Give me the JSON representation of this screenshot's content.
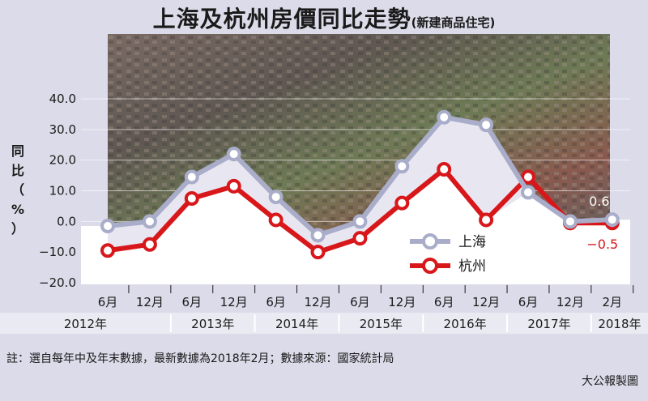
{
  "header": {
    "title": "上海及杭州房價同比走勢",
    "subtitle": "(新建商品住宅)"
  },
  "footer": {
    "note": "註：選自每年中及年末數據，最新數據為2018年2月；數據來源：國家統計局",
    "credit": "大公報製圖"
  },
  "colors": {
    "shanghai_line": "#a9adc9",
    "shanghai_marker_fill": "#ffffff",
    "hangzhou_line": "#d8171b",
    "hangzhou_marker_fill": "#ffffff",
    "background": "#dcdbe9",
    "year_band": "#eaeaf3"
  },
  "chart_data": {
    "type": "line",
    "title": "上海及杭州房價同比走勢",
    "subtitle": "(新建商品住宅)",
    "ylabel": "同比（%）",
    "ylim": [
      -20,
      40
    ],
    "yticks": [
      "40.0",
      "30.0",
      "20.0",
      "10.0",
      "0.0",
      "−10.0",
      "−20.0"
    ],
    "ytick_values": [
      40,
      30,
      20,
      10,
      0,
      -10,
      -20
    ],
    "categories": [
      "6月",
      "12月",
      "6月",
      "12月",
      "6月",
      "12月",
      "6月",
      "12月",
      "6月",
      "12月",
      "6月",
      "12月",
      "2月"
    ],
    "years": [
      "2012年",
      "2013年",
      "2014年",
      "2015年",
      "2016年",
      "2017年",
      "2018年"
    ],
    "year_spans": [
      [
        0,
        1
      ],
      [
        2,
        3
      ],
      [
        4,
        5
      ],
      [
        6,
        7
      ],
      [
        8,
        9
      ],
      [
        10,
        11
      ],
      [
        12,
        12
      ]
    ],
    "legend_position": "bottom-right",
    "series": [
      {
        "name": "上海",
        "values": [
          -1.5,
          0,
          14.5,
          22,
          8,
          -4.5,
          0,
          18,
          34,
          31.5,
          9.5,
          0,
          0.6
        ]
      },
      {
        "name": "杭州",
        "values": [
          -9.5,
          -7.5,
          7.5,
          11.5,
          0.5,
          -10,
          -5.5,
          6,
          17,
          0.5,
          14.5,
          -0.5,
          -0.5
        ]
      }
    ],
    "annotations": [
      {
        "series": 0,
        "index": 12,
        "text": "0.6"
      },
      {
        "series": 1,
        "index": 12,
        "text": "−0.5"
      }
    ]
  }
}
